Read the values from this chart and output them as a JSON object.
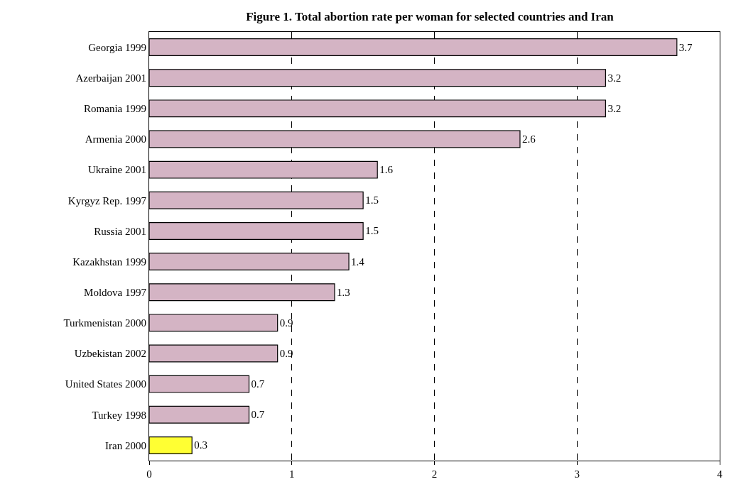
{
  "chart_data": {
    "type": "bar",
    "orientation": "horizontal",
    "title": "Figure 1. Total abortion rate per woman for selected countries and Iran",
    "categories": [
      "Georgia 1999",
      "Azerbaijan 2001",
      "Romania 1999",
      "Armenia 2000",
      "Ukraine 2001",
      "Kyrgyz Rep. 1997",
      "Russia 2001",
      "Kazakhstan 1999",
      "Moldova 1997",
      "Turkmenistan 2000",
      "Uzbekistan 2002",
      "United States 2000",
      "Turkey 1998",
      "Iran 2000"
    ],
    "values": [
      3.7,
      3.2,
      3.2,
      2.6,
      1.6,
      1.5,
      1.5,
      1.4,
      1.3,
      0.9,
      0.9,
      0.7,
      0.7,
      0.3
    ],
    "colors": [
      "#d4b4c4",
      "#d4b4c4",
      "#d4b4c4",
      "#d4b4c4",
      "#d4b4c4",
      "#d4b4c4",
      "#d4b4c4",
      "#d4b4c4",
      "#d4b4c4",
      "#d4b4c4",
      "#d4b4c4",
      "#d4b4c4",
      "#d4b4c4",
      "#ffff33"
    ],
    "xlim": [
      0,
      4
    ],
    "xticks": [
      0,
      1,
      2,
      3,
      4
    ],
    "grid": "x",
    "data_labels": true,
    "legend": false
  }
}
